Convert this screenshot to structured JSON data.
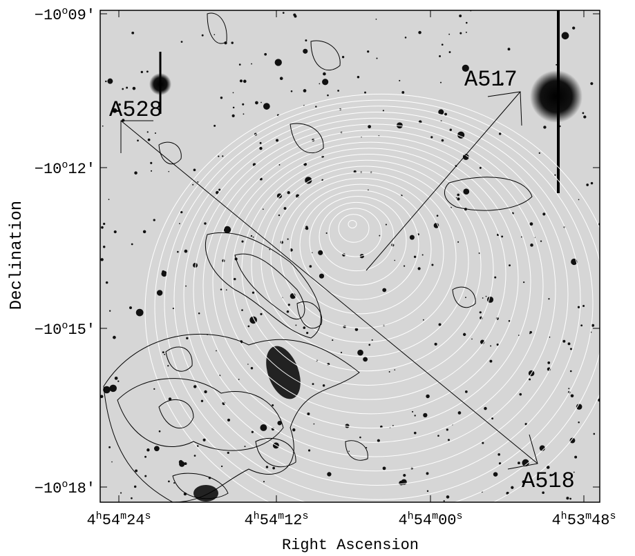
{
  "axes": {
    "x_label": "Right Ascension",
    "y_label": "Declination",
    "x_ticks": [
      [
        "4",
        "h",
        "54",
        "m",
        "24",
        "s"
      ],
      [
        "4",
        "h",
        "54",
        "m",
        "12",
        "s"
      ],
      [
        "4",
        "h",
        "54",
        "m",
        "00",
        "s"
      ],
      [
        "4",
        "h",
        "53",
        "m",
        "48",
        "s"
      ]
    ],
    "y_ticks": [
      [
        "−10",
        "o",
        "09′"
      ],
      [
        "−10",
        "o",
        "12′"
      ],
      [
        "−10",
        "o",
        "15′"
      ],
      [
        "−10",
        "o",
        "18′"
      ]
    ]
  },
  "annotations": [
    "A517",
    "A528",
    "A518"
  ]
}
